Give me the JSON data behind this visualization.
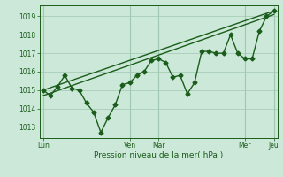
{
  "title": "",
  "xlabel": "Pression niveau de la mer( hPa )",
  "ylabel": "",
  "bg_color": "#cce8d8",
  "plot_bg_color": "#cce8d8",
  "grid_color": "#a0c8b0",
  "line_color": "#1a5c1a",
  "tick_label_color": "#1a5c1a",
  "label_color": "#1a5c1a",
  "ylim": [
    1012.4,
    1019.6
  ],
  "yticks": [
    1013,
    1014,
    1015,
    1016,
    1017,
    1018,
    1019
  ],
  "x_total": 192,
  "x_day_ticks": [
    0,
    72,
    96,
    168,
    192
  ],
  "x_day_labels": [
    "Lun",
    "Ven",
    "Mar",
    "Mer",
    "Jeu"
  ],
  "series1_x": [
    0,
    6,
    12,
    18,
    24,
    30,
    36,
    42,
    48,
    54,
    60,
    66,
    72,
    78,
    84,
    90,
    96,
    102,
    108,
    114,
    120,
    126,
    132,
    138,
    144,
    150,
    156,
    162,
    168,
    174,
    180,
    186,
    192
  ],
  "series1_y": [
    1015.0,
    1014.7,
    1015.2,
    1015.8,
    1015.1,
    1015.0,
    1014.3,
    1013.8,
    1012.7,
    1013.5,
    1014.2,
    1015.3,
    1015.4,
    1015.8,
    1016.0,
    1016.6,
    1016.7,
    1016.5,
    1015.7,
    1015.8,
    1014.8,
    1015.4,
    1017.1,
    1017.1,
    1017.0,
    1017.0,
    1018.0,
    1017.0,
    1016.7,
    1016.7,
    1018.2,
    1019.0,
    1019.3
  ],
  "trend1_x": [
    0,
    192
  ],
  "trend1_y": [
    1015.0,
    1019.3
  ],
  "trend2_x": [
    0,
    192
  ],
  "trend2_y": [
    1014.7,
    1019.1
  ],
  "marker": "D",
  "markersize": 2.5,
  "linewidth": 1.0,
  "trend_linewidth": 1.0
}
